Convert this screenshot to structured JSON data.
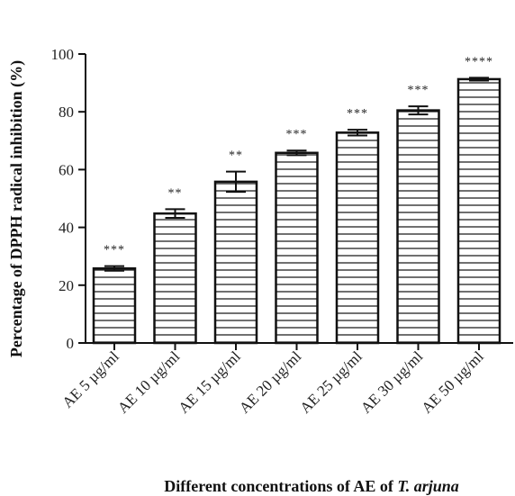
{
  "chart_data": {
    "type": "bar",
    "categories": [
      "AE 5 µg/ml",
      "AE 10 µg/ml",
      "AE 15 µg/ml",
      "AE 20 µg/ml",
      "AE 25 µg/ml",
      "AE 30 µg/ml",
      "AE 50 µg/ml"
    ],
    "values": [
      25.8,
      44.8,
      55.8,
      65.8,
      72.8,
      80.5,
      91.3
    ],
    "errors": [
      0.8,
      1.5,
      3.5,
      0.8,
      1.0,
      1.4,
      0.5
    ],
    "significance": [
      "***",
      "**",
      "**",
      "***",
      "***",
      "***",
      "****"
    ],
    "ylabel": "Percentage of DPPH radical inhibition (%)",
    "xlabel_prefix": "Different concentrations of AE of ",
    "xlabel_italic": "T. arjuna",
    "ylim": [
      0,
      100
    ],
    "yticks": [
      0,
      20,
      40,
      60,
      80,
      100
    ],
    "bar_fill": "#ffffff",
    "bar_stroke": "#111111",
    "hatch": "horizontal-lines",
    "grid": false
  }
}
